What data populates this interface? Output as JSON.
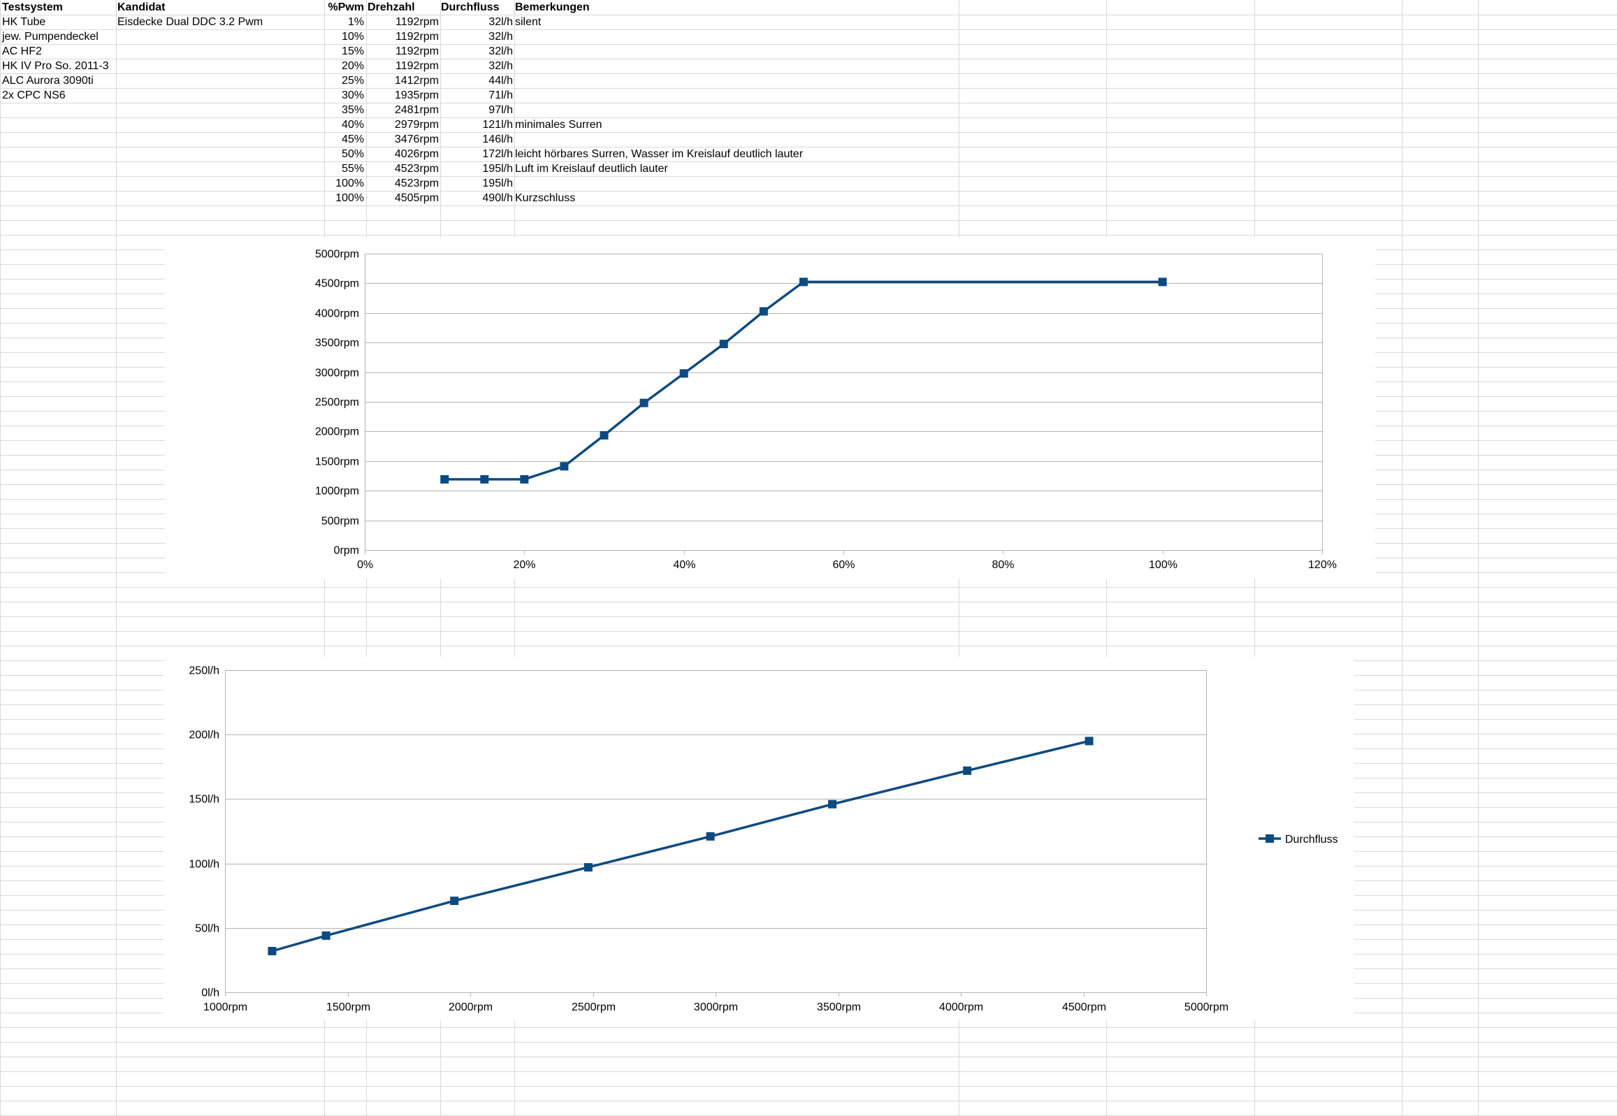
{
  "table": {
    "headers": [
      "Testsystem",
      "Kandidat",
      "%Pwm",
      "Drehzahl",
      "Durchfluss",
      "Bemerkungen"
    ],
    "testsystem": [
      "HK Tube",
      "jew. Pumpendeckel",
      "AC HF2",
      "HK IV Pro So. 2011-3",
      "ALC Aurora 3090ti",
      "2x CPC NS6"
    ],
    "kandidat": "Eisdecke Dual DDC 3.2 Pwm",
    "rows": [
      {
        "pwm": "1%",
        "rpm": "1192rpm",
        "flow": "32l/h",
        "note": "silent"
      },
      {
        "pwm": "10%",
        "rpm": "1192rpm",
        "flow": "32l/h",
        "note": ""
      },
      {
        "pwm": "15%",
        "rpm": "1192rpm",
        "flow": "32l/h",
        "note": ""
      },
      {
        "pwm": "20%",
        "rpm": "1192rpm",
        "flow": "32l/h",
        "note": ""
      },
      {
        "pwm": "25%",
        "rpm": "1412rpm",
        "flow": "44l/h",
        "note": ""
      },
      {
        "pwm": "30%",
        "rpm": "1935rpm",
        "flow": "71l/h",
        "note": ""
      },
      {
        "pwm": "35%",
        "rpm": "2481rpm",
        "flow": "97l/h",
        "note": ""
      },
      {
        "pwm": "40%",
        "rpm": "2979rpm",
        "flow": "121l/h",
        "note": "minimales Surren"
      },
      {
        "pwm": "45%",
        "rpm": "3476rpm",
        "flow": "146l/h",
        "note": ""
      },
      {
        "pwm": "50%",
        "rpm": "4026rpm",
        "flow": "172l/h",
        "note": "leicht hörbares Surren, Wasser im Kreislauf deutlich lauter"
      },
      {
        "pwm": "55%",
        "rpm": "4523rpm",
        "flow": "195l/h",
        "note": "Luft im Kreislauf deutlich lauter"
      },
      {
        "pwm": "100%",
        "rpm": "4523rpm",
        "flow": "195l/h",
        "note": ""
      },
      {
        "pwm": "100%",
        "rpm": "4505rpm",
        "flow": "490l/h",
        "note": "Kurzschluss"
      }
    ]
  },
  "chart_data": [
    {
      "type": "line",
      "title": "",
      "xlabel": "",
      "ylabel": "",
      "x": [
        0.1,
        0.15,
        0.2,
        0.25,
        0.3,
        0.35,
        0.4,
        0.45,
        0.5,
        0.55,
        1.0
      ],
      "series": [
        {
          "values": [
            1192,
            1192,
            1192,
            1412,
            1935,
            2481,
            2979,
            3476,
            4026,
            4523,
            4523
          ]
        }
      ],
      "xlim": [
        0,
        1.2
      ],
      "ylim": [
        0,
        5000
      ],
      "xticks": [
        0,
        0.2,
        0.4,
        0.6,
        0.8,
        1.0,
        1.2
      ],
      "xtick_labels": [
        "0%",
        "20%",
        "40%",
        "60%",
        "80%",
        "100%",
        "120%"
      ],
      "yticks": [
        0,
        500,
        1000,
        1500,
        2000,
        2500,
        3000,
        3500,
        4000,
        4500,
        5000
      ],
      "ytick_labels": [
        "0rpm",
        "500rpm",
        "1000rpm",
        "1500rpm",
        "2000rpm",
        "2500rpm",
        "3000rpm",
        "3500rpm",
        "4000rpm",
        "4500rpm",
        "5000rpm"
      ],
      "grid": true,
      "legend": "none",
      "color": "#0d4a80"
    },
    {
      "type": "line",
      "title": "",
      "xlabel": "",
      "ylabel": "",
      "x": [
        1192,
        1412,
        1935,
        2481,
        2979,
        3476,
        4026,
        4523
      ],
      "series": [
        {
          "name": "Durchfluss",
          "values": [
            32,
            44,
            71,
            97,
            121,
            146,
            172,
            195
          ]
        }
      ],
      "xlim": [
        1000,
        5000
      ],
      "ylim": [
        0,
        250
      ],
      "xticks": [
        1000,
        1500,
        2000,
        2500,
        3000,
        3500,
        4000,
        4500,
        5000
      ],
      "xtick_labels": [
        "1000rpm",
        "1500rpm",
        "2000rpm",
        "2500rpm",
        "3000rpm",
        "3500rpm",
        "4000rpm",
        "4500rpm",
        "5000rpm"
      ],
      "yticks": [
        0,
        50,
        100,
        150,
        200,
        250
      ],
      "ytick_labels": [
        "0l/h",
        "50l/h",
        "100l/h",
        "150l/h",
        "200l/h",
        "250l/h"
      ],
      "grid": true,
      "legend": "right",
      "color": "#0d4a80"
    }
  ]
}
